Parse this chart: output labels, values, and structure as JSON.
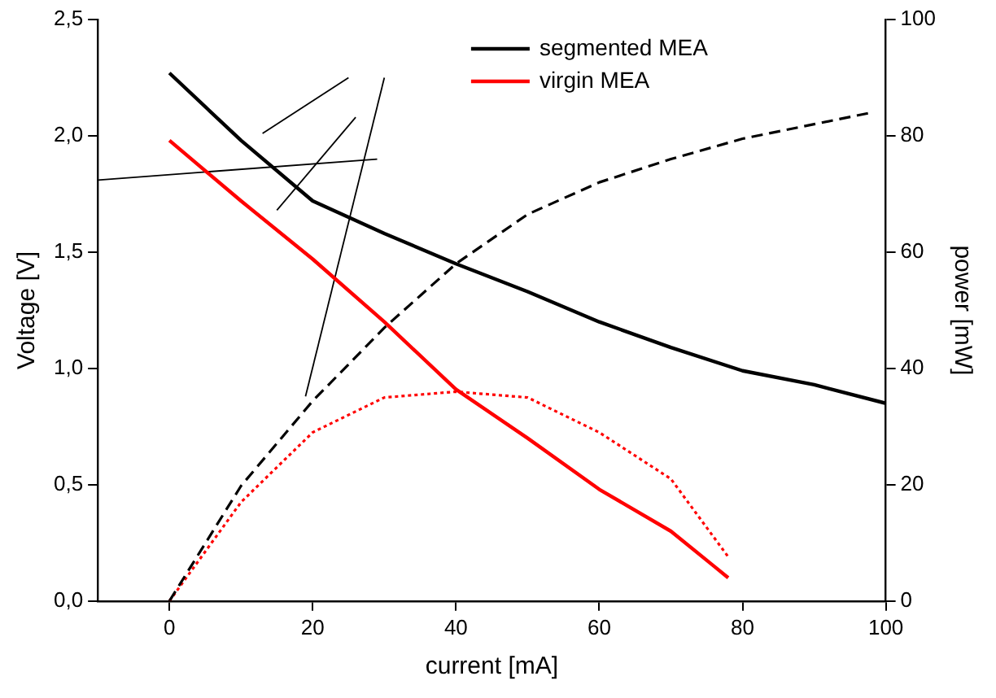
{
  "chart_data": {
    "type": "line",
    "xlabel": "current [mA]",
    "ylabel": "Voltage [V]",
    "y2label": "power [mW]",
    "xlim": [
      -10,
      100
    ],
    "xticks": [
      0,
      20,
      40,
      60,
      80,
      100
    ],
    "ylim": [
      0,
      2.5
    ],
    "yticks": [
      {
        "value": 0,
        "label": "0,0"
      },
      {
        "value": 0.5,
        "label": "0,5"
      },
      {
        "value": 1,
        "label": "1,0"
      },
      {
        "value": 1.5,
        "label": "1,5"
      },
      {
        "value": 2,
        "label": "2,0"
      },
      {
        "value": 2.5,
        "label": "2,5"
      }
    ],
    "y2lim": [
      0,
      100
    ],
    "y2ticks": [
      0,
      20,
      40,
      60,
      80,
      100
    ],
    "grid": false,
    "legend": "top",
    "marker": "none",
    "series": [
      {
        "name": "segmented MEA",
        "color": "#000000",
        "line_style": "solid",
        "x": [
          0,
          10,
          20,
          30,
          40,
          50,
          60,
          70,
          80,
          90,
          100
        ],
        "values": [
          2.27,
          1.98,
          1.72,
          1.58,
          1.45,
          1.33,
          1.2,
          1.09,
          0.99,
          0.93,
          0.85
        ]
      },
      {
        "name": "virgin MEA",
        "color": "#ff0000",
        "line_style": "solid",
        "x": [
          0,
          10,
          20,
          30,
          40,
          50,
          60,
          70,
          76,
          78
        ],
        "values": [
          1.98,
          1.72,
          1.47,
          1.2,
          0.91,
          0.7,
          0.48,
          0.3,
          0.15,
          0.1
        ]
      },
      {
        "color": "#000000",
        "line_style": "dashed",
        "axis": "y2",
        "x": [
          0,
          10,
          20,
          30,
          40,
          50,
          60,
          70,
          80,
          90,
          98
        ],
        "values": [
          0,
          19.8,
          34.4,
          47,
          58,
          66.5,
          72,
          76,
          79.5,
          82,
          84
        ]
      },
      {
        "color": "#000000",
        "line_style": "solid",
        "x": [
          -10,
          29
        ],
        "values": [
          1.81,
          1.9
        ]
      },
      {
        "color": "#000000",
        "line_style": "solid",
        "x": [
          13,
          25
        ],
        "values": [
          2.01,
          2.25
        ]
      },
      {
        "color": "#000000",
        "line_style": "solid",
        "x": [
          15,
          26
        ],
        "values": [
          1.68,
          2.08
        ]
      },
      {
        "color": "#000000",
        "line_style": "solid",
        "x": [
          19,
          30
        ],
        "values": [
          0.88,
          2.25
        ]
      },
      {
        "color": "#ff0000",
        "line_style": "dotted",
        "axis": "y2",
        "x": [
          0,
          10,
          20,
          30,
          35,
          40,
          50,
          60,
          70,
          78
        ],
        "values": [
          0,
          17,
          29,
          35,
          35.5,
          36,
          35,
          29,
          21,
          7.6
        ]
      }
    ]
  }
}
